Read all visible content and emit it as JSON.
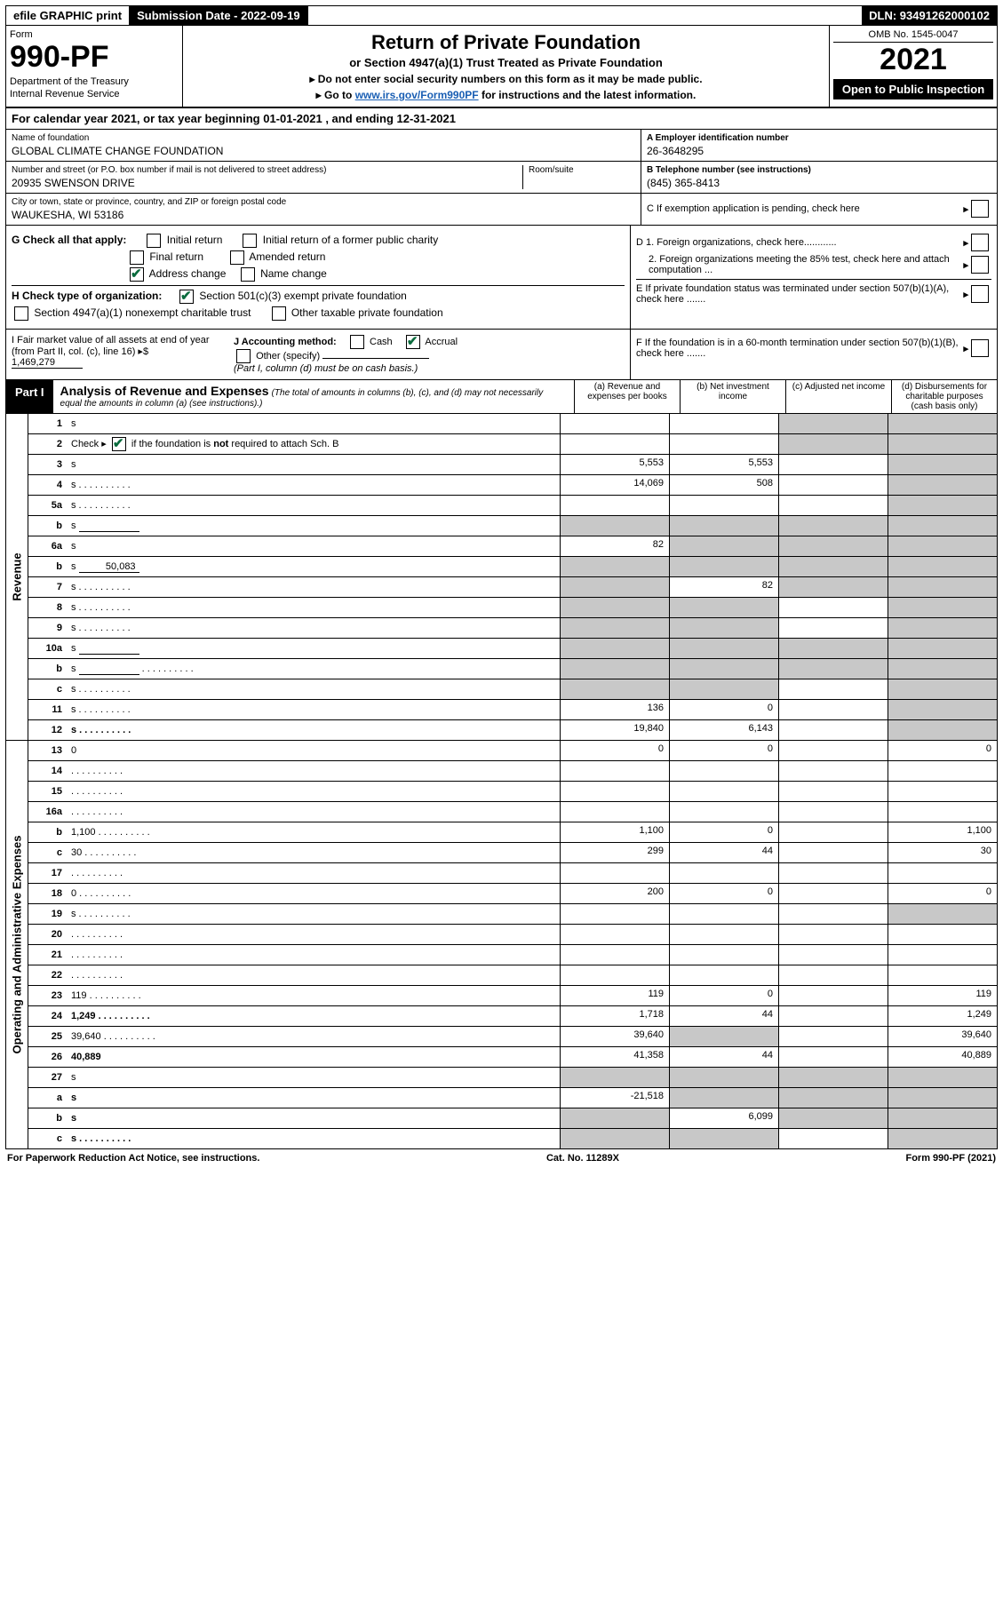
{
  "topbar": {
    "efile": "efile GRAPHIC print",
    "sub_label": "Submission Date - 2022-09-19",
    "dln": "DLN: 93491262000102"
  },
  "header": {
    "form": "Form",
    "number": "990-PF",
    "dept": "Department of the Treasury",
    "irs": "Internal Revenue Service",
    "title": "Return of Private Foundation",
    "subtitle": "or Section 4947(a)(1) Trust Treated as Private Foundation",
    "note1": "▸ Do not enter social security numbers on this form as it may be made public.",
    "note2_pre": "▸ Go to ",
    "note2_link": "www.irs.gov/Form990PF",
    "note2_post": " for instructions and the latest information.",
    "omb": "OMB No. 1545-0047",
    "year": "2021",
    "inspect": "Open to Public Inspection"
  },
  "calendar": "For calendar year 2021, or tax year beginning 01-01-2021                       , and ending 12-31-2021",
  "entity": {
    "name_label": "Name of foundation",
    "name": "GLOBAL CLIMATE CHANGE FOUNDATION",
    "addr_label": "Number and street (or P.O. box number if mail is not delivered to street address)",
    "addr": "20935 SWENSON DRIVE",
    "room_label": "Room/suite",
    "city_label": "City or town, state or province, country, and ZIP or foreign postal code",
    "city": "WAUKESHA, WI  53186",
    "ein_label": "A Employer identification number",
    "ein": "26-3648295",
    "phone_label": "B Telephone number (see instructions)",
    "phone": "(845) 365-8413",
    "c_label": "C If exemption application is pending, check here"
  },
  "checks": {
    "g_label": "G Check all that apply:",
    "g1": "Initial return",
    "g2": "Initial return of a former public charity",
    "g3": "Final return",
    "g4": "Amended return",
    "g5": "Address change",
    "g6": "Name change",
    "h_label": "H Check type of organization:",
    "h1": "Section 501(c)(3) exempt private foundation",
    "h2": "Section 4947(a)(1) nonexempt charitable trust",
    "h3": "Other taxable private foundation",
    "i_label": "I Fair market value of all assets at end of year (from Part II, col. (c), line 16) ▸$",
    "i_value": "1,469,279",
    "j_label": "J Accounting method:",
    "j_cash": "Cash",
    "j_accrual": "Accrual",
    "j_other": "Other (specify)",
    "j_note": "(Part I, column (d) must be on cash basis.)",
    "d1": "D 1. Foreign organizations, check here............",
    "d2": "2. Foreign organizations meeting the 85% test, check here and attach computation ...",
    "e": "E  If private foundation status was terminated under section 507(b)(1)(A), check here .......",
    "f": "F  If the foundation is in a 60-month termination under section 507(b)(1)(B), check here ......."
  },
  "part1": {
    "label": "Part I",
    "title": "Analysis of Revenue and Expenses",
    "note": "(The total of amounts in columns (b), (c), and (d) may not necessarily equal the amounts in column (a) (see instructions).)",
    "col_a": "(a)   Revenue and expenses per books",
    "col_b": "(b)   Net investment income",
    "col_c": "(c)   Adjusted net income",
    "col_d": "(d)  Disbursements for charitable purposes (cash basis only)"
  },
  "sections": {
    "revenue": "Revenue",
    "expenses": "Operating and Administrative Expenses"
  },
  "rows": [
    {
      "n": "1",
      "d": "s",
      "a": "",
      "b": "",
      "c": "s"
    },
    {
      "n": "2",
      "d": "s",
      "a": "",
      "b": "",
      "c": "s",
      "checked": true,
      "dots": true
    },
    {
      "n": "3",
      "d": "s",
      "a": "5,553",
      "b": "5,553",
      "c": ""
    },
    {
      "n": "4",
      "d": "s",
      "a": "14,069",
      "b": "508",
      "c": "",
      "dots": true
    },
    {
      "n": "5a",
      "d": "s",
      "a": "",
      "b": "",
      "c": "",
      "dots": true
    },
    {
      "n": "b",
      "d": "s",
      "a": "s",
      "b": "s",
      "c": "s",
      "inline_field": ""
    },
    {
      "n": "6a",
      "d": "s",
      "a": "82",
      "b": "s",
      "c": "s"
    },
    {
      "n": "b",
      "d": "s",
      "a": "s",
      "b": "s",
      "c": "s",
      "inline_field": "50,083"
    },
    {
      "n": "7",
      "d": "s",
      "a": "s",
      "b": "82",
      "c": "s",
      "dots": true
    },
    {
      "n": "8",
      "d": "s",
      "a": "s",
      "b": "s",
      "c": "",
      "dots": true
    },
    {
      "n": "9",
      "d": "s",
      "a": "s",
      "b": "s",
      "c": "",
      "dots": true
    },
    {
      "n": "10a",
      "d": "s",
      "a": "s",
      "b": "s",
      "c": "s",
      "inline_field": ""
    },
    {
      "n": "b",
      "d": "s",
      "a": "s",
      "b": "s",
      "c": "s",
      "inline_field": "",
      "dots": true
    },
    {
      "n": "c",
      "d": "s",
      "a": "s",
      "b": "s",
      "c": "",
      "dots": true
    },
    {
      "n": "11",
      "d": "s",
      "a": "136",
      "b": "0",
      "c": "",
      "dots": true
    },
    {
      "n": "12",
      "d": "s",
      "a": "19,840",
      "b": "6,143",
      "c": "",
      "bold": true,
      "dots": true
    }
  ],
  "rows2": [
    {
      "n": "13",
      "d": "0",
      "a": "0",
      "b": "0",
      "c": ""
    },
    {
      "n": "14",
      "d": "",
      "a": "",
      "b": "",
      "c": "",
      "dots": true
    },
    {
      "n": "15",
      "d": "",
      "a": "",
      "b": "",
      "c": "",
      "dots": true
    },
    {
      "n": "16a",
      "d": "",
      "a": "",
      "b": "",
      "c": "",
      "dots": true
    },
    {
      "n": "b",
      "d": "1,100",
      "a": "1,100",
      "b": "0",
      "c": "",
      "dots": true
    },
    {
      "n": "c",
      "d": "30",
      "a": "299",
      "b": "44",
      "c": "",
      "dots": true
    },
    {
      "n": "17",
      "d": "",
      "a": "",
      "b": "",
      "c": "",
      "dots": true
    },
    {
      "n": "18",
      "d": "0",
      "a": "200",
      "b": "0",
      "c": "",
      "dots": true
    },
    {
      "n": "19",
      "d": "s",
      "a": "",
      "b": "",
      "c": "",
      "dots": true
    },
    {
      "n": "20",
      "d": "",
      "a": "",
      "b": "",
      "c": "",
      "dots": true
    },
    {
      "n": "21",
      "d": "",
      "a": "",
      "b": "",
      "c": "",
      "dots": true
    },
    {
      "n": "22",
      "d": "",
      "a": "",
      "b": "",
      "c": "",
      "dots": true
    },
    {
      "n": "23",
      "d": "119",
      "a": "119",
      "b": "0",
      "c": "",
      "dots": true
    },
    {
      "n": "24",
      "d": "1,249",
      "a": "1,718",
      "b": "44",
      "c": "",
      "bold": true,
      "dots": true,
      "twoLine": true
    },
    {
      "n": "25",
      "d": "39,640",
      "a": "39,640",
      "b": "s",
      "c": "",
      "dots": true
    },
    {
      "n": "26",
      "d": "40,889",
      "a": "41,358",
      "b": "44",
      "c": "",
      "bold": true
    },
    {
      "n": "27",
      "d": "s",
      "a": "s",
      "b": "s",
      "c": "s"
    },
    {
      "n": "a",
      "d": "s",
      "a": "-21,518",
      "b": "s",
      "c": "s",
      "bold": true
    },
    {
      "n": "b",
      "d": "s",
      "a": "s",
      "b": "6,099",
      "c": "s",
      "bold": true
    },
    {
      "n": "c",
      "d": "s",
      "a": "s",
      "b": "s",
      "c": "",
      "bold": true,
      "dots": true
    }
  ],
  "footer": {
    "left": "For Paperwork Reduction Act Notice, see instructions.",
    "mid": "Cat. No. 11289X",
    "right": "Form 990-PF (2021)"
  },
  "colors": {
    "shaded": "#c8c8c8",
    "link": "#1a5fb4",
    "check": "#0a6b3d"
  }
}
